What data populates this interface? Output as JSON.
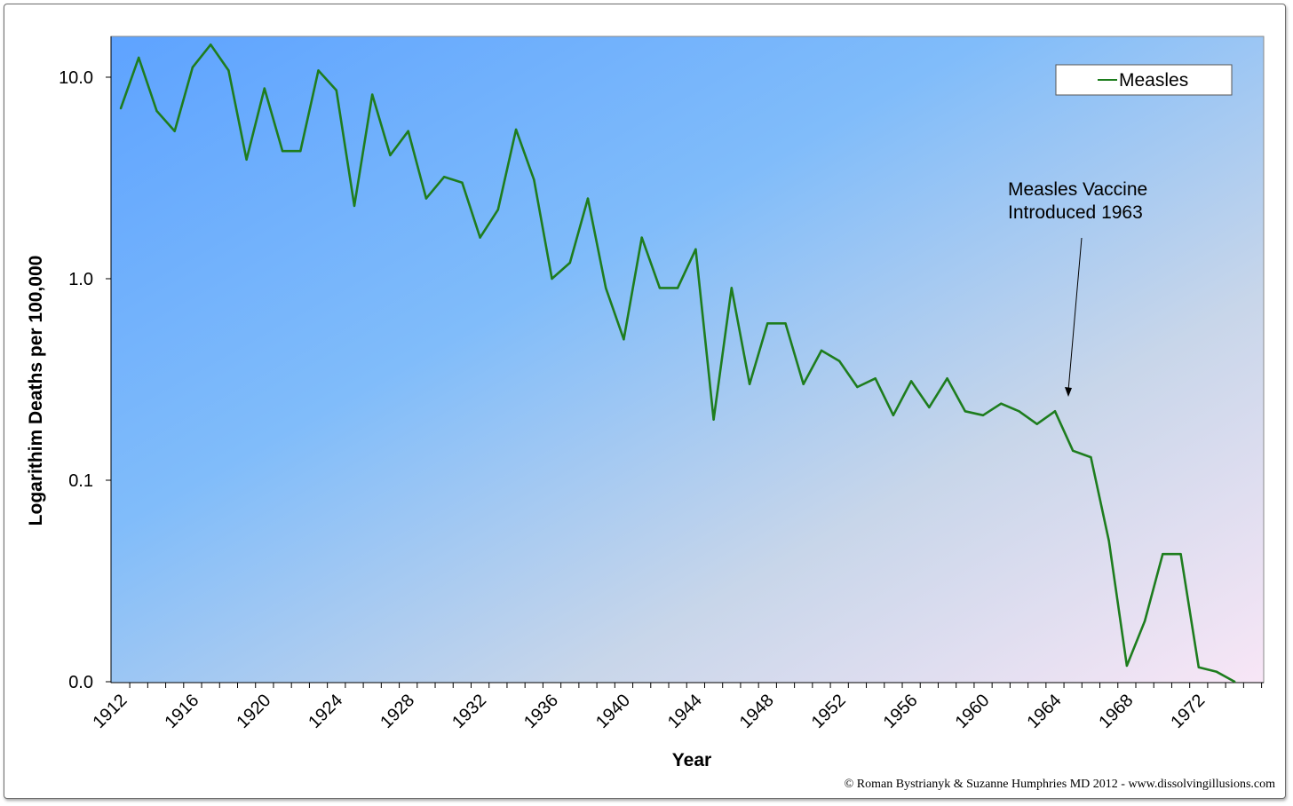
{
  "chart_data": {
    "type": "line",
    "title": "",
    "xlabel": "Year",
    "ylabel": "Logarithim Deaths per 100,000",
    "y_scale": "log",
    "ylim": [
      0.01,
      15
    ],
    "y_ticks": [
      {
        "value": 10,
        "label": "10.0"
      },
      {
        "value": 1,
        "label": "1.0"
      },
      {
        "value": 0.1,
        "label": "0.1"
      },
      {
        "value": 0.01,
        "label": "0.0"
      }
    ],
    "x_tick_labels": [
      1912,
      1916,
      1920,
      1924,
      1928,
      1932,
      1936,
      1940,
      1944,
      1948,
      1952,
      1956,
      1960,
      1964,
      1968,
      1972
    ],
    "legend_position": "top-right",
    "grid": false,
    "background_gradient": [
      "#5ea3ff",
      "#80bcfa",
      "#c8d6ea",
      "#f8e6f6"
    ],
    "series": [
      {
        "name": "Measles",
        "color": "#1e7d1e",
        "x": [
          1912,
          1913,
          1914,
          1915,
          1916,
          1917,
          1918,
          1919,
          1920,
          1921,
          1922,
          1923,
          1924,
          1925,
          1926,
          1927,
          1928,
          1929,
          1930,
          1931,
          1932,
          1933,
          1934,
          1935,
          1936,
          1937,
          1938,
          1939,
          1940,
          1941,
          1942,
          1943,
          1944,
          1945,
          1946,
          1947,
          1948,
          1949,
          1950,
          1951,
          1952,
          1953,
          1954,
          1955,
          1956,
          1957,
          1958,
          1959,
          1960,
          1961,
          1962,
          1963,
          1964,
          1965,
          1966,
          1967,
          1968,
          1969,
          1970,
          1971,
          1972,
          1973,
          1974
        ],
        "values": [
          7.0,
          12.5,
          6.8,
          5.4,
          11.2,
          14.5,
          10.8,
          3.9,
          8.8,
          4.3,
          4.3,
          10.8,
          8.6,
          2.3,
          8.2,
          4.1,
          5.4,
          2.5,
          3.2,
          3.0,
          1.6,
          2.2,
          5.5,
          3.1,
          1.0,
          1.2,
          2.5,
          0.9,
          0.5,
          1.6,
          0.9,
          0.9,
          1.4,
          0.2,
          0.9,
          0.3,
          0.6,
          0.6,
          0.3,
          0.44,
          0.39,
          0.29,
          0.32,
          0.21,
          0.31,
          0.23,
          0.32,
          0.22,
          0.21,
          0.24,
          0.22,
          0.19,
          0.22,
          0.14,
          0.13,
          0.05,
          0.012,
          0.02,
          0.043,
          0.043,
          0.0118,
          0.0112,
          0.01
        ]
      }
    ],
    "annotation": {
      "line1": "Measles Vaccine",
      "line2": "Introduced 1963",
      "points_to_year": 1964
    },
    "credit": "© Roman Bystrianyk & Suzanne Humphries MD 2012 - www.dissolvingillusions.com"
  }
}
